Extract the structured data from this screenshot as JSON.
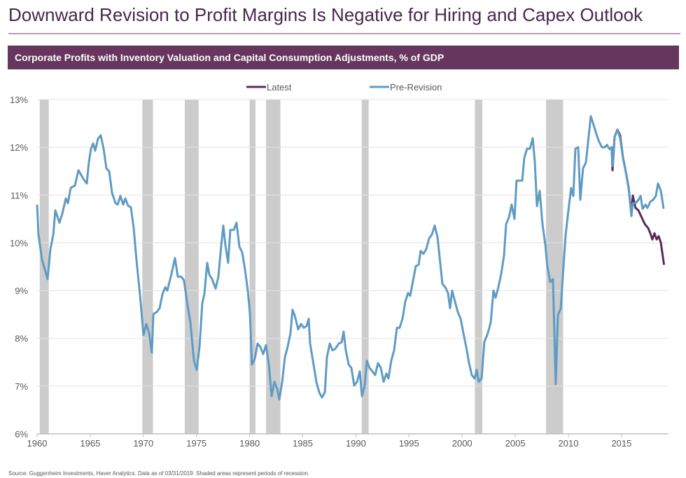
{
  "header": {
    "title": "Downward Revision to Profit Margins Is Negative for Hiring and Capex Outlook"
  },
  "banner": {
    "text": "Corporate Profits with Inventory Valuation and Capital Consumption Adjustments, % of GDP"
  },
  "footer": {
    "source": "Source: Guggenheim Investments, Haver Analytics. Data as of 03/31/2019. Shaded areas represent periods of recession."
  },
  "chart_data": {
    "type": "line",
    "title": "Corporate Profits with Inventory Valuation and Capital Consumption Adjustments, % of GDP",
    "xlabel": "",
    "ylabel": "% of GDP",
    "xlim": [
      1960,
      2019.4
    ],
    "ylim": [
      6,
      13
    ],
    "yticks": [
      6,
      7,
      8,
      9,
      10,
      11,
      12,
      13
    ],
    "ytick_labels": [
      "6%",
      "7%",
      "8%",
      "9%",
      "10%",
      "11%",
      "12%",
      "13%"
    ],
    "xticks": [
      1960,
      1965,
      1970,
      1975,
      1980,
      1985,
      1990,
      1995,
      2000,
      2005,
      2010,
      2015
    ],
    "xtick_labels": [
      "1960",
      "1965",
      "1970",
      "1975",
      "1980",
      "1985",
      "1990",
      "1995",
      "2000",
      "2005",
      "2010",
      "2015"
    ],
    "grid": true,
    "legend_position": "top-center",
    "recessions": [
      [
        1960.25,
        1961.1
      ],
      [
        1969.9,
        1970.9
      ],
      [
        1973.9,
        1975.2
      ],
      [
        1980.0,
        1980.55
      ],
      [
        1981.55,
        1982.9
      ],
      [
        1990.55,
        1991.2
      ],
      [
        2001.2,
        2001.9
      ],
      [
        2007.9,
        2009.5
      ]
    ],
    "colors": {
      "latest": "#5c2a5a",
      "pre_revision": "#5e9bc4",
      "recession": "#cccccc"
    },
    "series": [
      {
        "name": "Latest",
        "x": [
          2014.0,
          2014.08,
          2014.15,
          2014.35,
          2014.61,
          2014.87,
          2015.14,
          2015.4,
          2015.67,
          2015.93,
          2016.06,
          2016.32,
          2016.59,
          2016.98,
          2017.2,
          2017.5,
          2017.71,
          2017.9,
          2018.1,
          2018.3,
          2018.5,
          2018.7,
          2019.0
        ],
        "values": [
          12.0,
          12.0,
          11.52,
          12.22,
          12.37,
          12.25,
          11.78,
          11.49,
          11.15,
          10.6,
          10.99,
          10.73,
          10.68,
          10.49,
          10.39,
          10.31,
          10.2,
          10.07,
          10.2,
          10.07,
          10.14,
          10.0,
          9.54
        ]
      },
      {
        "name": "Pre-Revision",
        "x": [
          1960.0,
          1960.13,
          1960.46,
          1960.99,
          1961.25,
          1961.52,
          1961.71,
          1962.11,
          1962.37,
          1962.7,
          1962.9,
          1963.16,
          1963.56,
          1963.89,
          1964.35,
          1964.68,
          1964.87,
          1965.07,
          1965.27,
          1965.47,
          1965.73,
          1965.99,
          1966.26,
          1966.52,
          1966.79,
          1967.05,
          1967.38,
          1967.58,
          1967.84,
          1968.1,
          1968.3,
          1968.56,
          1968.83,
          1969.09,
          1969.35,
          1969.68,
          1970.01,
          1970.28,
          1970.54,
          1970.8,
          1970.94,
          1971.26,
          1971.53,
          1971.79,
          1972.06,
          1972.25,
          1972.58,
          1972.98,
          1973.24,
          1973.57,
          1973.83,
          1974.16,
          1974.43,
          1974.76,
          1975.02,
          1975.28,
          1975.55,
          1975.74,
          1976.01,
          1976.21,
          1976.47,
          1976.8,
          1977.06,
          1977.33,
          1977.52,
          1977.72,
          1977.98,
          1978.18,
          1978.51,
          1978.77,
          1979.04,
          1979.3,
          1979.57,
          1979.83,
          1980.03,
          1980.22,
          1980.49,
          1980.75,
          1981.01,
          1981.28,
          1981.54,
          1981.81,
          1982.07,
          1982.33,
          1982.6,
          1982.79,
          1983.06,
          1983.32,
          1983.58,
          1983.85,
          1984.04,
          1984.24,
          1984.57,
          1984.84,
          1985.1,
          1985.36,
          1985.56,
          1985.69,
          1986.02,
          1986.28,
          1986.55,
          1986.81,
          1987.08,
          1987.27,
          1987.54,
          1987.8,
          1988.06,
          1988.39,
          1988.66,
          1988.85,
          1989.05,
          1989.32,
          1989.58,
          1989.84,
          1990.11,
          1990.37,
          1990.57,
          1990.83,
          1991.03,
          1991.29,
          1991.55,
          1991.82,
          1992.08,
          1992.35,
          1992.61,
          1992.87,
          1993.07,
          1993.33,
          1993.6,
          1993.86,
          1994.12,
          1994.39,
          1994.65,
          1994.91,
          1995.11,
          1995.38,
          1995.64,
          1995.9,
          1996.1,
          1996.36,
          1996.63,
          1996.89,
          1997.15,
          1997.42,
          1997.68,
          1997.94,
          1998.14,
          1998.41,
          1998.67,
          1998.87,
          1999.06,
          1999.33,
          1999.59,
          1999.86,
          2000.12,
          2000.38,
          2000.65,
          2000.91,
          2001.17,
          2001.37,
          2001.57,
          2001.83,
          2002.09,
          2002.42,
          2002.69,
          2002.95,
          2003.15,
          2003.41,
          2003.68,
          2003.94,
          2004.14,
          2004.4,
          2004.66,
          2004.93,
          2005.12,
          2005.39,
          2005.65,
          2005.85,
          2006.11,
          2006.38,
          2006.64,
          2006.84,
          2007.04,
          2007.3,
          2007.56,
          2007.83,
          2008.02,
          2008.29,
          2008.55,
          2008.81,
          2009.01,
          2009.28,
          2009.54,
          2009.74,
          2010.0,
          2010.26,
          2010.46,
          2010.66,
          2010.92,
          2011.12,
          2011.38,
          2011.65,
          2011.84,
          2012.11,
          2012.37,
          2012.64,
          2012.9,
          2013.16,
          2013.43,
          2013.62,
          2013.89,
          2014.08,
          2014.15,
          2014.35,
          2014.61,
          2014.87,
          2015.14,
          2015.4,
          2015.67,
          2015.93,
          2016.06,
          2016.32,
          2016.59,
          2016.79,
          2016.98,
          2017.25,
          2017.44,
          2017.71,
          2017.97,
          2018.23,
          2018.43,
          2018.7,
          2018.96
        ],
        "values": [
          10.8,
          10.17,
          9.65,
          9.24,
          9.87,
          10.17,
          10.68,
          10.42,
          10.61,
          10.93,
          10.83,
          11.15,
          11.2,
          11.52,
          11.34,
          11.24,
          11.68,
          11.97,
          12.08,
          11.93,
          12.18,
          12.25,
          11.97,
          11.56,
          11.49,
          11.05,
          10.83,
          10.8,
          10.98,
          10.8,
          10.93,
          10.78,
          10.74,
          10.31,
          9.65,
          8.92,
          8.07,
          8.3,
          8.11,
          7.7,
          8.51,
          8.55,
          8.63,
          8.92,
          9.07,
          9.0,
          9.29,
          9.68,
          9.29,
          9.29,
          9.21,
          8.7,
          8.33,
          7.53,
          7.34,
          7.82,
          8.74,
          8.92,
          9.58,
          9.33,
          9.24,
          9.04,
          9.29,
          9.95,
          10.36,
          9.95,
          9.58,
          10.27,
          10.27,
          10.42,
          9.92,
          9.8,
          9.43,
          9.0,
          8.51,
          7.45,
          7.57,
          7.89,
          7.82,
          7.67,
          7.86,
          7.45,
          6.79,
          7.09,
          6.94,
          6.72,
          7.09,
          7.6,
          7.82,
          8.11,
          8.6,
          8.48,
          8.19,
          8.3,
          8.22,
          8.26,
          8.41,
          7.89,
          7.45,
          7.09,
          6.87,
          6.76,
          6.87,
          7.6,
          7.89,
          7.75,
          7.78,
          7.89,
          7.92,
          8.14,
          7.75,
          7.45,
          7.38,
          7.01,
          7.09,
          7.31,
          6.79,
          7.01,
          7.53,
          7.38,
          7.31,
          7.23,
          7.48,
          7.38,
          7.09,
          7.26,
          7.16,
          7.53,
          7.75,
          8.22,
          8.22,
          8.41,
          8.77,
          8.95,
          8.89,
          9.21,
          9.51,
          9.54,
          9.83,
          9.77,
          9.87,
          10.09,
          10.17,
          10.36,
          10.12,
          9.58,
          9.14,
          9.07,
          8.95,
          8.63,
          9.0,
          8.77,
          8.55,
          8.41,
          8.11,
          7.82,
          7.48,
          7.23,
          7.16,
          7.34,
          7.09,
          7.16,
          7.92,
          8.11,
          8.33,
          9.0,
          8.85,
          9.07,
          9.36,
          9.73,
          10.39,
          10.53,
          10.8,
          10.5,
          11.3,
          11.3,
          11.3,
          11.78,
          11.97,
          11.97,
          12.19,
          11.71,
          10.77,
          11.09,
          10.39,
          9.95,
          9.51,
          9.18,
          9.24,
          7.04,
          8.48,
          8.63,
          9.51,
          10.17,
          10.68,
          11.15,
          10.98,
          11.97,
          12.0,
          10.9,
          11.56,
          11.68,
          12.08,
          12.65,
          12.47,
          12.27,
          12.11,
          12.0,
          12.0,
          12.05,
          11.96,
          12.0,
          11.61,
          12.22,
          12.37,
          12.19,
          11.78,
          11.49,
          11.15,
          10.56,
          10.83,
          10.83,
          10.9,
          10.98,
          10.71,
          10.8,
          10.73,
          10.86,
          10.9,
          10.98,
          11.24,
          11.09,
          10.71
        ]
      }
    ]
  }
}
